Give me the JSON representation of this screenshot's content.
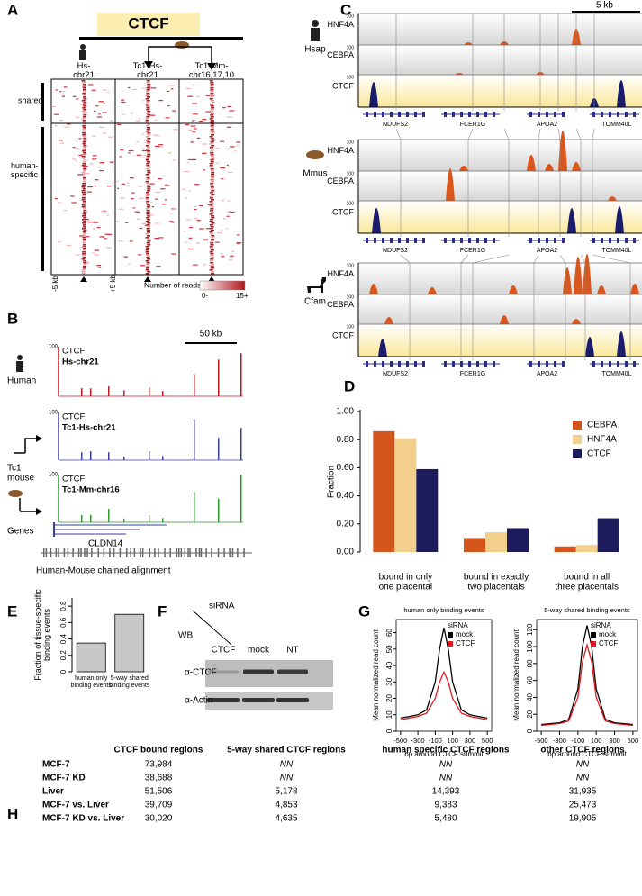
{
  "panel_labels": [
    "A",
    "B",
    "C",
    "D",
    "E",
    "F",
    "G",
    "H"
  ],
  "panel_a": {
    "title": "CTCF",
    "columns": [
      "Hs-\nchr21",
      "Tc1-Hs-\nchr21",
      "Tc1-Mm-\nchr16,17,10"
    ],
    "row_groups": [
      "shared",
      "human-\nspecific"
    ],
    "x_left": "-5 kb",
    "x_right": "+5 kb",
    "legend_title": "Number of reads:",
    "legend_min": "0-",
    "legend_max": "15+"
  },
  "panel_b": {
    "scale": "50 kb",
    "max": "100",
    "tracks": [
      {
        "factor": "CTCF",
        "sample": "Hs-chr21"
      },
      {
        "factor": "CTCF",
        "sample": "Tc1-Hs-chr21"
      },
      {
        "factor": "CTCF",
        "sample": "Tc1-Mm-chr16"
      }
    ],
    "species": [
      "Human",
      "Tc1\nmouse"
    ],
    "genes_label": "Genes",
    "gene": "CLDN14",
    "alignment": "Human-Mouse chained alignment"
  },
  "panel_c": {
    "scale": "5 kb",
    "max": "100",
    "species": [
      "Hsap",
      "Mmus",
      "Cfam"
    ],
    "tracks": [
      "HNF4A",
      "CEBPA",
      "CTCF"
    ],
    "genes": [
      "NDUFS2",
      "FCER1G",
      "APOA2",
      "TOMM40L"
    ]
  },
  "panel_f": {
    "wb": "WB",
    "sirna": "siRNA",
    "lanes": [
      "CTCF",
      "mock",
      "NT"
    ],
    "antibodies": [
      "α-CTCF",
      "α-Actin"
    ]
  },
  "chart_data": [
    {
      "type": "bar",
      "ylabel": "Fraction",
      "categories": [
        "bound in only\none placental",
        "bound in exactly\ntwo placentals",
        "bound in all\nthree placentals"
      ],
      "series": [
        {
          "name": "CEBPA",
          "color": "#d4561c",
          "values": [
            0.86,
            0.1,
            0.04
          ]
        },
        {
          "name": "HNF4A",
          "color": "#f2cf8a",
          "values": [
            0.81,
            0.14,
            0.05
          ]
        },
        {
          "name": "CTCF",
          "color": "#1c1c5c",
          "values": [
            0.59,
            0.17,
            0.24
          ]
        }
      ],
      "ylim": [
        0,
        1.0
      ],
      "yticks": [
        {
          "value": 0,
          "label": "0.00"
        },
        {
          "value": 0.2,
          "label": "0.20"
        },
        {
          "value": 0.4,
          "label": "0.40"
        },
        {
          "value": 0.6,
          "label": "0.60"
        },
        {
          "value": 0.8,
          "label": "0.80"
        },
        {
          "value": 1.0,
          "label": "1.00"
        }
      ],
      "legend": "upper-right"
    },
    {
      "type": "bar",
      "ylabel": "Fraction of tissue-specific\nbinding events",
      "categories": [
        "human only\nbinding events",
        "5-way shared\nbinding events"
      ],
      "values": [
        0.35,
        0.7
      ],
      "color": "#c8c8c8",
      "ylim": [
        0,
        0.9
      ],
      "yticks": [
        0,
        0.2,
        0.4,
        0.6,
        0.8
      ]
    },
    {
      "type": "line",
      "title": "human only binding events",
      "legend_title": "siRNA",
      "xlabel": "bp around CTCF summit",
      "ylabel": "Mean normalized read count",
      "x": [
        -500,
        -400,
        -300,
        -200,
        -100,
        -50,
        0,
        50,
        100,
        200,
        300,
        400,
        500
      ],
      "series": [
        {
          "name": "mock",
          "color": "#000000",
          "values": [
            8,
            9,
            10,
            13,
            30,
            50,
            63,
            50,
            30,
            13,
            10,
            9,
            8
          ]
        },
        {
          "name": "CTCF",
          "color": "#e0191c",
          "values": [
            7,
            8,
            9,
            11,
            20,
            30,
            36,
            30,
            20,
            11,
            9,
            8,
            7
          ]
        }
      ],
      "xlim": [
        -550,
        550
      ],
      "xticks": [
        -500,
        -300,
        -100,
        100,
        300,
        500
      ],
      "ylim": [
        0,
        68
      ],
      "yticks": [
        0,
        10,
        20,
        30,
        40,
        50,
        60
      ]
    },
    {
      "type": "line",
      "title": "5-way shared binding events",
      "legend_title": "siRNA",
      "xlabel": "bp around CTCF summit",
      "ylabel": "Mean normalized read count",
      "x": [
        -500,
        -400,
        -300,
        -200,
        -100,
        -50,
        0,
        50,
        100,
        200,
        300,
        400,
        500
      ],
      "series": [
        {
          "name": "mock",
          "color": "#000000",
          "values": [
            8,
            9,
            10,
            14,
            50,
            100,
            125,
            100,
            50,
            14,
            10,
            9,
            8
          ]
        },
        {
          "name": "CTCF",
          "color": "#e0191c",
          "values": [
            7,
            8,
            9,
            12,
            40,
            82,
            102,
            82,
            40,
            12,
            9,
            8,
            7
          ]
        }
      ],
      "xlim": [
        -550,
        550
      ],
      "xticks": [
        -500,
        -300,
        -100,
        100,
        300,
        500
      ],
      "ylim": [
        0,
        132
      ],
      "yticks": [
        0,
        20,
        40,
        60,
        80,
        100,
        120
      ]
    }
  ],
  "table": {
    "header": [
      "CTCF bound regions",
      "5-way shared CTCF regions",
      "human specific CTCF regions",
      "other CTCF regions"
    ],
    "rows": [
      [
        "MCF-7",
        "73,984",
        "NN",
        "NN",
        "NN"
      ],
      [
        "MCF-7 KD",
        "38,688",
        "NN",
        "NN",
        "NN"
      ],
      [
        "Liver",
        "51,506",
        "5,178",
        "14,393",
        "31,935"
      ],
      [
        "MCF-7 vs. Liver",
        "39,709",
        "4,853",
        "9,383",
        "25,473"
      ],
      [
        "MCF-7 KD vs. Liver",
        "30,020",
        "4,635",
        "5,480",
        "19,905"
      ]
    ]
  }
}
